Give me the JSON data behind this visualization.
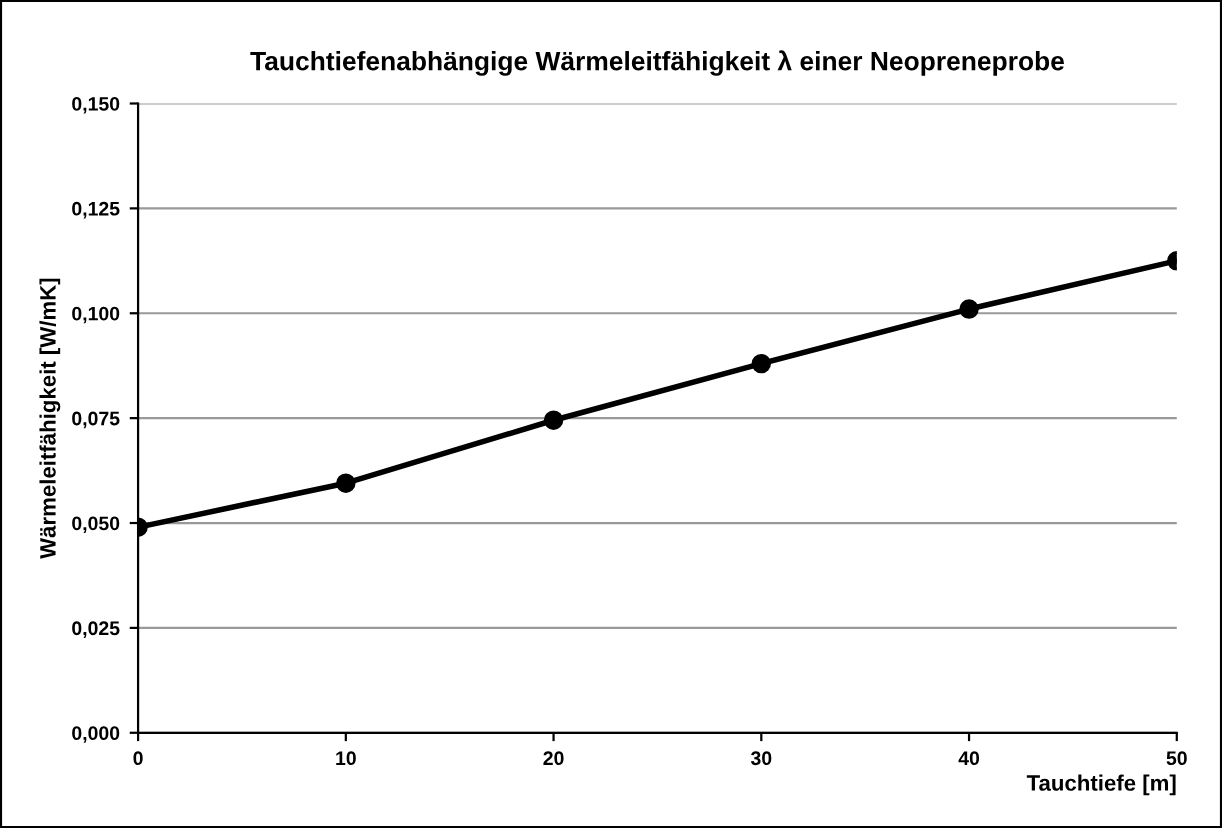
{
  "chart_data": {
    "type": "line",
    "title": "Tauchtiefenabhängige Wärmeleitfähigkeit λ einer Neopreneprobe",
    "xlabel": "Tauchtiefe [m]",
    "ylabel": "Wärmeleitfähigkeit [W/mK]",
    "x": [
      0,
      10,
      20,
      30,
      40,
      50
    ],
    "series": [
      {
        "color": "#000000",
        "values": [
          0.049,
          0.0595,
          0.0745,
          0.088,
          0.101,
          0.1125
        ]
      }
    ],
    "xlim": [
      0,
      50
    ],
    "xticks": [
      0,
      10,
      20,
      30,
      40,
      50
    ],
    "ylim": [
      0,
      0.15
    ],
    "yticks": [
      {
        "value": 0,
        "label": "0,000"
      },
      {
        "value": 0.025,
        "label": "0,025"
      },
      {
        "value": 0.05,
        "label": "0,050"
      },
      {
        "value": 0.075,
        "label": "0,075"
      },
      {
        "value": 0.1,
        "label": "0,100"
      },
      {
        "value": 0.125,
        "label": "0,125"
      },
      {
        "value": 0.15,
        "label": "0,150"
      }
    ],
    "grid": "y",
    "marker": "circle",
    "line_style": "solid"
  }
}
